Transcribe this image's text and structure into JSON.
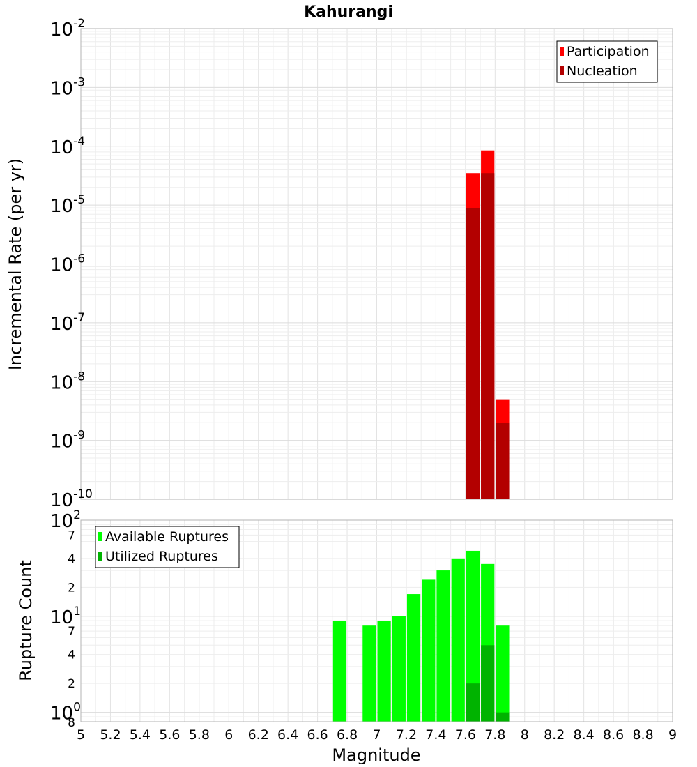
{
  "chart_data": [
    {
      "type": "bar",
      "title": "Kahurangi",
      "ylabel": "Incremental Rate (per yr)",
      "xlabel": "",
      "x_range": [
        5,
        9
      ],
      "y_range": [
        1e-10,
        0.01
      ],
      "y_scale": "log",
      "y_ticks": [
        {
          "base": "10",
          "exp": "-2"
        },
        {
          "base": "10",
          "exp": "-3"
        },
        {
          "base": "10",
          "exp": "-4"
        },
        {
          "base": "10",
          "exp": "-5"
        },
        {
          "base": "10",
          "exp": "-6"
        },
        {
          "base": "10",
          "exp": "-7"
        },
        {
          "base": "10",
          "exp": "-8"
        },
        {
          "base": "10",
          "exp": "-9"
        },
        {
          "base": "10",
          "exp": "-10"
        }
      ],
      "grid": true,
      "legend_position": "top-right",
      "series": [
        {
          "name": "Participation",
          "color": "#ff0000",
          "x": [
            7.65,
            7.75,
            7.85
          ],
          "values": [
            3.5e-05,
            8.5e-05,
            5e-09
          ]
        },
        {
          "name": "Nucleation",
          "color": "#b30000",
          "x": [
            7.65,
            7.75,
            7.85
          ],
          "values": [
            9e-06,
            3.5e-05,
            2e-09
          ]
        }
      ]
    },
    {
      "type": "bar",
      "title": "",
      "ylabel": "Rupture Count",
      "xlabel": "Magnitude",
      "x_range": [
        5,
        9
      ],
      "x_ticks": [
        "5",
        "5.2",
        "5.4",
        "5.6",
        "5.8",
        "6",
        "6.2",
        "6.4",
        "6.6",
        "6.8",
        "7",
        "7.2",
        "7.4",
        "7.6",
        "7.8",
        "8",
        "8.2",
        "8.4",
        "8.6",
        "8.8",
        "9"
      ],
      "y_range": [
        0.8,
        100
      ],
      "y_scale": "log",
      "y_ticks": [
        {
          "base": "10",
          "exp": "2",
          "value": 100
        },
        {
          "label": "7",
          "value": 70
        },
        {
          "label": "4",
          "value": 40
        },
        {
          "label": "2",
          "value": 20
        },
        {
          "base": "10",
          "exp": "1",
          "value": 10
        },
        {
          "label": "7",
          "value": 7
        },
        {
          "label": "4",
          "value": 4
        },
        {
          "label": "2",
          "value": 2
        },
        {
          "base": "10",
          "exp": "0",
          "value": 1
        }
      ],
      "y_bottom_label": "8",
      "grid": true,
      "legend_position": "top-left",
      "series": [
        {
          "name": "Available Ruptures",
          "color": "#00ff00",
          "x": [
            6.75,
            6.95,
            7.05,
            7.15,
            7.25,
            7.35,
            7.45,
            7.55,
            7.65,
            7.75,
            7.85
          ],
          "values": [
            9,
            8,
            9,
            10,
            17,
            24,
            30,
            40,
            48,
            35,
            8
          ]
        },
        {
          "name": "Utilized Ruptures",
          "color": "#00b300",
          "x": [
            7.65,
            7.75,
            7.85
          ],
          "values": [
            2,
            5,
            1
          ]
        }
      ]
    }
  ]
}
